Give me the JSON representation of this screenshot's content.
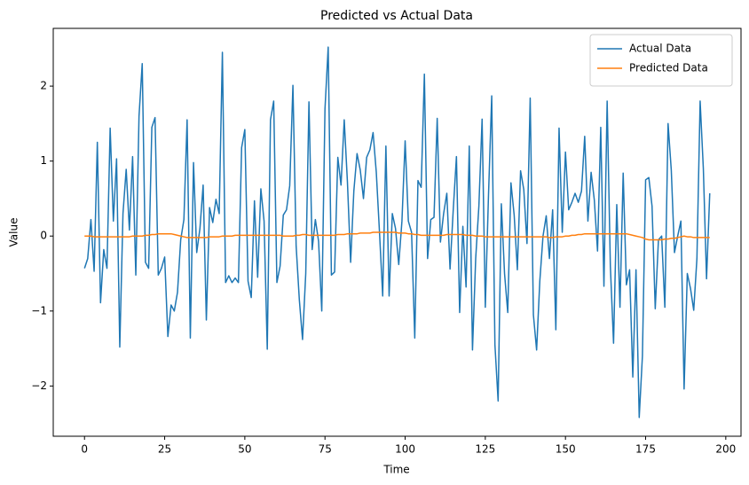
{
  "chart_data": {
    "type": "line",
    "title": "Predicted vs Actual Data",
    "xlabel": "Time",
    "ylabel": "Value",
    "x": [
      0,
      1,
      2,
      3,
      4,
      5,
      6,
      7,
      8,
      9,
      10,
      11,
      12,
      13,
      14,
      15,
      16,
      17,
      18,
      19,
      20,
      21,
      22,
      23,
      24,
      25,
      26,
      27,
      28,
      29,
      30,
      31,
      32,
      33,
      34,
      35,
      36,
      37,
      38,
      39,
      40,
      41,
      42,
      43,
      44,
      45,
      46,
      47,
      48,
      49,
      50,
      51,
      52,
      53,
      54,
      55,
      56,
      57,
      58,
      59,
      60,
      61,
      62,
      63,
      64,
      65,
      66,
      67,
      68,
      69,
      70,
      71,
      72,
      73,
      74,
      75,
      76,
      77,
      78,
      79,
      80,
      81,
      82,
      83,
      84,
      85,
      86,
      87,
      88,
      89,
      90,
      91,
      92,
      93,
      94,
      95,
      96,
      97,
      98,
      99,
      100,
      101,
      102,
      103,
      104,
      105,
      106,
      107,
      108,
      109,
      110,
      111,
      112,
      113,
      114,
      115,
      116,
      117,
      118,
      119,
      120,
      121,
      122,
      123,
      124,
      125,
      126,
      127,
      128,
      129,
      130,
      131,
      132,
      133,
      134,
      135,
      136,
      137,
      138,
      139,
      140,
      141,
      142,
      143,
      144,
      145,
      146,
      147,
      148,
      149,
      150,
      151,
      152,
      153,
      154,
      155,
      156,
      157,
      158,
      159,
      160,
      161,
      162,
      163,
      164,
      165,
      166,
      167,
      168,
      169,
      170,
      171,
      172,
      173,
      174,
      175,
      176,
      177,
      178,
      179,
      180,
      181,
      182,
      183,
      184,
      185,
      186,
      187,
      188,
      189,
      190,
      191,
      192,
      193,
      194,
      195
    ],
    "series": [
      {
        "name": "Actual Data",
        "color": "#1f77b4",
        "values": [
          -0.43,
          -0.3,
          0.22,
          -0.47,
          1.25,
          -0.89,
          -0.18,
          -0.43,
          1.44,
          0.2,
          1.03,
          -1.48,
          0.3,
          0.89,
          0.08,
          1.06,
          -0.52,
          1.6,
          2.3,
          -0.35,
          -0.43,
          1.45,
          1.58,
          -0.52,
          -0.43,
          -0.28,
          -1.34,
          -0.92,
          -1.0,
          -0.75,
          -0.05,
          0.22,
          1.55,
          -1.36,
          0.98,
          -0.22,
          0.1,
          0.68,
          -1.12,
          0.38,
          0.18,
          0.49,
          0.3,
          2.45,
          -0.62,
          -0.53,
          -0.62,
          -0.56,
          -0.62,
          1.18,
          1.42,
          -0.6,
          -0.82,
          0.47,
          -0.55,
          0.63,
          0.2,
          -1.51,
          1.55,
          1.8,
          -0.62,
          -0.4,
          0.28,
          0.35,
          0.67,
          2.01,
          -0.13,
          -0.85,
          -1.38,
          -0.5,
          1.79,
          -0.18,
          0.22,
          -0.07,
          -1.0,
          1.7,
          2.52,
          -0.52,
          -0.48,
          1.05,
          0.68,
          1.55,
          0.72,
          -0.35,
          0.6,
          1.1,
          0.88,
          0.5,
          1.05,
          1.15,
          1.38,
          0.85,
          0.05,
          -0.8,
          1.2,
          -0.8,
          0.3,
          0.1,
          -0.38,
          0.2,
          1.27,
          0.2,
          0.05,
          -1.36,
          0.74,
          0.65,
          2.16,
          -0.3,
          0.22,
          0.25,
          1.57,
          -0.08,
          0.3,
          0.57,
          -0.44,
          0.35,
          1.06,
          -1.02,
          0.13,
          -0.68,
          1.2,
          -1.52,
          -0.3,
          0.4,
          1.56,
          -0.95,
          0.55,
          1.87,
          -1.45,
          -2.2,
          0.43,
          -0.5,
          -1.02,
          0.71,
          0.28,
          -0.45,
          0.87,
          0.62,
          -0.1,
          1.84,
          -1.05,
          -1.52,
          -0.6,
          0.0,
          0.27,
          -0.3,
          0.35,
          -1.25,
          1.44,
          0.05,
          1.12,
          0.35,
          0.45,
          0.57,
          0.45,
          0.6,
          1.33,
          0.2,
          0.85,
          0.48,
          -0.2,
          1.45,
          -0.67,
          1.8,
          -0.4,
          -1.43,
          0.42,
          -0.95,
          0.84,
          -0.65,
          -0.45,
          -1.88,
          -0.45,
          -2.42,
          -1.6,
          0.75,
          0.78,
          0.4,
          -0.97,
          -0.05,
          0.0,
          -0.95,
          1.5,
          0.88,
          -0.22,
          0.0,
          0.2,
          -2.04,
          -0.5,
          -0.7,
          -0.99,
          -0.3,
          1.8,
          0.9,
          -0.57,
          0.57
        ]
      },
      {
        "name": "Predicted Data",
        "color": "#ff7f0e",
        "values": [
          0,
          0,
          0,
          -0.01,
          -0.01,
          -0.01,
          -0.01,
          -0.01,
          -0.01,
          -0.01,
          -0.01,
          -0.01,
          -0.01,
          -0.01,
          -0.01,
          0,
          0,
          0,
          0,
          0.01,
          0.01,
          0.02,
          0.02,
          0.03,
          0.03,
          0.03,
          0.03,
          0.03,
          0.02,
          0.01,
          0,
          -0.01,
          -0.02,
          -0.02,
          -0.02,
          -0.02,
          -0.02,
          -0.02,
          -0.02,
          -0.01,
          -0.01,
          -0.01,
          -0.01,
          0,
          0,
          0,
          0,
          0.01,
          0.01,
          0.01,
          0.01,
          0.01,
          0.01,
          0.01,
          0.01,
          0.01,
          0.01,
          0.01,
          0.01,
          0.01,
          0.01,
          0.01,
          0,
          0,
          0,
          0,
          0.01,
          0.01,
          0.02,
          0.02,
          0.01,
          0.01,
          0.01,
          0.01,
          0.01,
          0.01,
          0.01,
          0.01,
          0.01,
          0.02,
          0.02,
          0.02,
          0.03,
          0.03,
          0.03,
          0.03,
          0.04,
          0.04,
          0.04,
          0.04,
          0.05,
          0.05,
          0.05,
          0.05,
          0.05,
          0.05,
          0.05,
          0.05,
          0.04,
          0.04,
          0.04,
          0.03,
          0.03,
          0.02,
          0.02,
          0.01,
          0.01,
          0.01,
          0.01,
          0.01,
          0.01,
          0.01,
          0.01,
          0.02,
          0.02,
          0.02,
          0.02,
          0.02,
          0.02,
          0.01,
          0.01,
          0.01,
          0,
          0,
          0,
          -0.01,
          -0.01,
          -0.01,
          -0.01,
          -0.01,
          -0.01,
          -0.01,
          -0.01,
          -0.01,
          -0.01,
          -0.01,
          -0.01,
          -0.01,
          -0.01,
          -0.01,
          -0.01,
          -0.01,
          -0.01,
          -0.01,
          -0.01,
          -0.02,
          -0.02,
          -0.01,
          -0.01,
          -0.01,
          0,
          0,
          0.01,
          0.01,
          0.02,
          0.02,
          0.03,
          0.03,
          0.03,
          0.03,
          0.03,
          0.03,
          0.03,
          0.03,
          0.03,
          0.03,
          0.03,
          0.03,
          0.03,
          0.03,
          0.02,
          0.01,
          0,
          -0.01,
          -0.02,
          -0.04,
          -0.05,
          -0.05,
          -0.05,
          -0.05,
          -0.05,
          -0.04,
          -0.04,
          -0.03,
          -0.03,
          -0.02,
          -0.01,
          0,
          -0.01,
          -0.01,
          -0.02,
          -0.02,
          -0.02,
          -0.02,
          -0.02,
          -0.02
        ]
      }
    ],
    "xlim": [
      -9.75,
      204.75
    ],
    "ylim": [
      -2.67,
      2.77
    ],
    "xticks": [
      0,
      25,
      50,
      75,
      100,
      125,
      150,
      175,
      200
    ],
    "yticks": [
      {
        "value": -2,
        "label": "−2"
      },
      {
        "value": -1,
        "label": "−1"
      },
      0,
      1,
      2
    ],
    "grid": false,
    "legend": "upper right"
  }
}
